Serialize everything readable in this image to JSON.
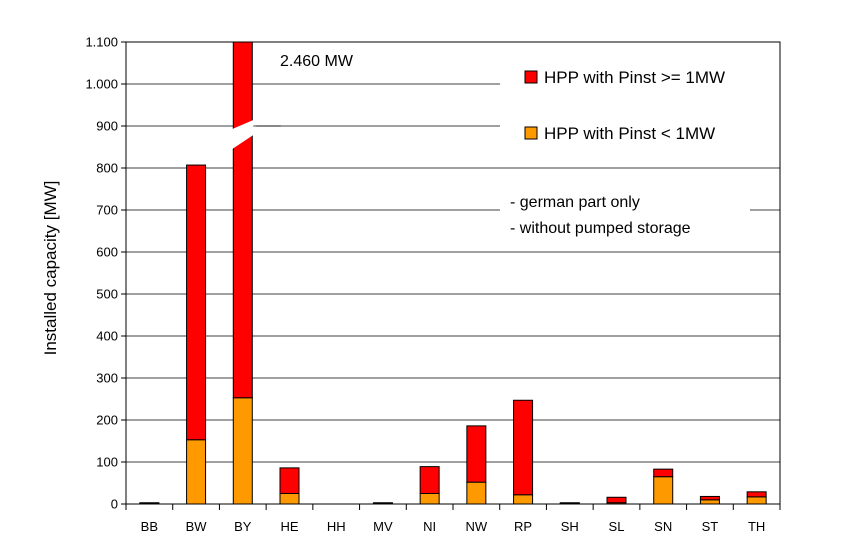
{
  "chart_data": {
    "type": "bar",
    "stacked": true,
    "ylabel": "Installed capacity [MW]",
    "xlabel": "",
    "ylim": [
      0,
      1100
    ],
    "yticks": [
      0,
      100,
      200,
      300,
      400,
      500,
      600,
      700,
      800,
      900,
      1000,
      1100
    ],
    "ytick_labels": [
      "0",
      "100",
      "200",
      "300",
      "400",
      "500",
      "600",
      "700",
      "800",
      "900",
      "1.000",
      "1.100"
    ],
    "grid": true,
    "legend_position": "top-right",
    "categories": [
      "BB",
      "BW",
      "BY",
      "HE",
      "HH",
      "MV",
      "NI",
      "NW",
      "RP",
      "SH",
      "SL",
      "SN",
      "ST",
      "TH"
    ],
    "series": [
      {
        "name": "HPP with Pinst < 1MW",
        "color": "#FF9900",
        "values": [
          2,
          153,
          253,
          25,
          0,
          2,
          25,
          52,
          22,
          2,
          3,
          65,
          10,
          17
        ]
      },
      {
        "name": "HPP with Pinst >= 1MW",
        "color": "#FF0000",
        "values": [
          1,
          654,
          2207,
          61,
          0,
          1,
          64,
          134,
          225,
          1,
          13,
          18,
          8,
          12
        ]
      }
    ],
    "axis_break": {
      "category": "BY",
      "label": "2.460 MW"
    },
    "legend": [
      {
        "label": "HPP with Pinst >= 1MW",
        "color": "#FF0000"
      },
      {
        "label": "HPP with Pinst < 1MW",
        "color": "#FF9900"
      }
    ],
    "notes": [
      "- german part only",
      "- without pumped storage"
    ]
  }
}
